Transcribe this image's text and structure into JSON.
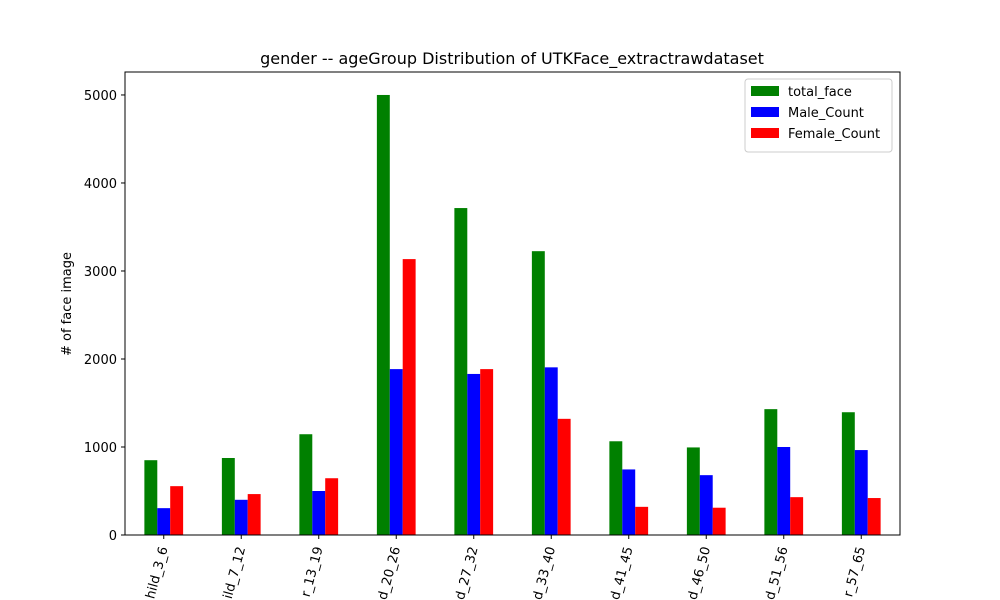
{
  "chart_data": {
    "type": "bar",
    "title": "gender -- ageGroup Distribution  of UTKFace_extractrawdataset",
    "y_label": "# of face image",
    "categories": [
      "hild_3_6",
      "ild_7_12",
      "r_13_19",
      "d_20_26",
      "d_27_32",
      "d_33_40",
      "d_41_45",
      "d_46_50",
      "d_51_56",
      "r_57_65"
    ],
    "series": [
      {
        "name": "total_face",
        "color": "#008000",
        "values": [
          850,
          875,
          1145,
          5000,
          3715,
          3225,
          1065,
          995,
          1430,
          1395
        ]
      },
      {
        "name": "Male_Count",
        "color": "#0000ff",
        "values": [
          305,
          400,
          500,
          1885,
          1830,
          1905,
          745,
          680,
          1000,
          965
        ]
      },
      {
        "name": "Female_Count",
        "color": "#ff0000",
        "values": [
          555,
          465,
          645,
          3135,
          1885,
          1320,
          320,
          310,
          430,
          420
        ]
      }
    ],
    "ylim": [
      0,
      5261
    ],
    "yticks": [
      0,
      1000,
      2000,
      3000,
      4000,
      5000
    ],
    "legend": "upper right"
  }
}
